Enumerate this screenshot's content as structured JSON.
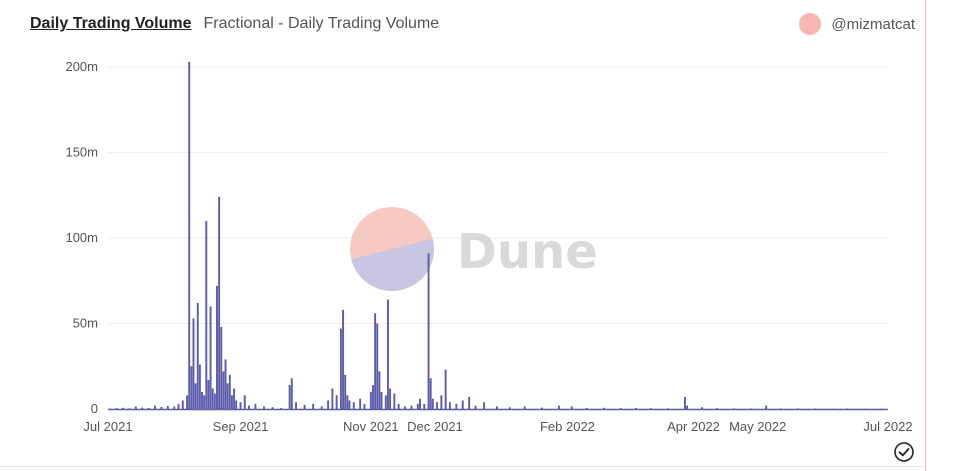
{
  "header": {
    "title": "Daily Trading Volume",
    "subtitle": "Fractional - Daily Trading Volume",
    "author": "@mizmatcat"
  },
  "colors": {
    "bar": "#5c5cab",
    "avatar": "#f7b7ae",
    "watermark_top": "#f6c9c2",
    "watermark_bottom": "#c9c6e3",
    "grid": "#eeeeee"
  },
  "watermark": {
    "text": "Dune"
  },
  "chart_data": {
    "type": "bar",
    "title": "Daily Trading Volume",
    "subtitle": "Fractional - Daily Trading Volume",
    "xlabel": "",
    "ylabel": "",
    "grid": true,
    "x_range": [
      "2021-07-01",
      "2022-07-01"
    ],
    "ylim": [
      0,
      200000000
    ],
    "y_ticks": [
      {
        "value": 0,
        "label": "0"
      },
      {
        "value": 50000000,
        "label": "50m"
      },
      {
        "value": 100000000,
        "label": "100m"
      },
      {
        "value": 150000000,
        "label": "150m"
      },
      {
        "value": 200000000,
        "label": "200m"
      }
    ],
    "x_ticks": [
      {
        "date": "2021-07-01",
        "label": "Jul 2021"
      },
      {
        "date": "2021-09-01",
        "label": "Sep 2021"
      },
      {
        "date": "2021-11-01",
        "label": "Nov 2021"
      },
      {
        "date": "2021-12-01",
        "label": "Dec 2021"
      },
      {
        "date": "2022-02-01",
        "label": "Feb 2022"
      },
      {
        "date": "2022-04-01",
        "label": "Apr 2022"
      },
      {
        "date": "2022-05-01",
        "label": "May 2022"
      },
      {
        "date": "2022-07-01",
        "label": "Jul 2022"
      }
    ],
    "series": [
      {
        "points": [
          [
            "2021-07-02",
            300000
          ],
          [
            "2021-07-05",
            500000
          ],
          [
            "2021-07-08",
            700000
          ],
          [
            "2021-07-11",
            400000
          ],
          [
            "2021-07-14",
            1500000
          ],
          [
            "2021-07-17",
            800000
          ],
          [
            "2021-07-20",
            600000
          ],
          [
            "2021-07-23",
            2000000
          ],
          [
            "2021-07-26",
            1200000
          ],
          [
            "2021-07-29",
            1800000
          ],
          [
            "2021-08-01",
            1500000
          ],
          [
            "2021-08-03",
            3000000
          ],
          [
            "2021-08-05",
            5000000
          ],
          [
            "2021-08-07",
            8000000
          ],
          [
            "2021-08-08",
            203000000
          ],
          [
            "2021-08-09",
            25000000
          ],
          [
            "2021-08-10",
            53000000
          ],
          [
            "2021-08-11",
            15000000
          ],
          [
            "2021-08-12",
            62000000
          ],
          [
            "2021-08-13",
            26000000
          ],
          [
            "2021-08-14",
            10000000
          ],
          [
            "2021-08-15",
            8000000
          ],
          [
            "2021-08-16",
            110000000
          ],
          [
            "2021-08-17",
            17000000
          ],
          [
            "2021-08-18",
            60000000
          ],
          [
            "2021-08-19",
            12000000
          ],
          [
            "2021-08-20",
            9000000
          ],
          [
            "2021-08-21",
            72000000
          ],
          [
            "2021-08-22",
            124000000
          ],
          [
            "2021-08-23",
            48000000
          ],
          [
            "2021-08-24",
            22000000
          ],
          [
            "2021-08-25",
            29000000
          ],
          [
            "2021-08-26",
            15000000
          ],
          [
            "2021-08-27",
            20000000
          ],
          [
            "2021-08-28",
            8000000
          ],
          [
            "2021-08-29",
            12000000
          ],
          [
            "2021-08-30",
            5000000
          ],
          [
            "2021-09-01",
            4000000
          ],
          [
            "2021-09-03",
            8000000
          ],
          [
            "2021-09-05",
            2000000
          ],
          [
            "2021-09-08",
            3000000
          ],
          [
            "2021-09-12",
            1500000
          ],
          [
            "2021-09-16",
            1000000
          ],
          [
            "2021-09-20",
            500000
          ],
          [
            "2021-09-24",
            14000000
          ],
          [
            "2021-09-25",
            18000000
          ],
          [
            "2021-09-27",
            4000000
          ],
          [
            "2021-10-01",
            2500000
          ],
          [
            "2021-10-05",
            3000000
          ],
          [
            "2021-10-09",
            1500000
          ],
          [
            "2021-10-12",
            5000000
          ],
          [
            "2021-10-14",
            12000000
          ],
          [
            "2021-10-16",
            8000000
          ],
          [
            "2021-10-18",
            47000000
          ],
          [
            "2021-10-19",
            58000000
          ],
          [
            "2021-10-20",
            20000000
          ],
          [
            "2021-10-21",
            8000000
          ],
          [
            "2021-10-22",
            5000000
          ],
          [
            "2021-10-24",
            4000000
          ],
          [
            "2021-10-27",
            6000000
          ],
          [
            "2021-10-29",
            3000000
          ],
          [
            "2021-11-01",
            10000000
          ],
          [
            "2021-11-02",
            14000000
          ],
          [
            "2021-11-03",
            56000000
          ],
          [
            "2021-11-04",
            50000000
          ],
          [
            "2021-11-05",
            22000000
          ],
          [
            "2021-11-06",
            10000000
          ],
          [
            "2021-11-08",
            8000000
          ],
          [
            "2021-11-09",
            64000000
          ],
          [
            "2021-11-10",
            12000000
          ],
          [
            "2021-11-12",
            9000000
          ],
          [
            "2021-11-14",
            3000000
          ],
          [
            "2021-11-17",
            1500000
          ],
          [
            "2021-11-20",
            2000000
          ],
          [
            "2021-11-23",
            3000000
          ],
          [
            "2021-11-24",
            6000000
          ],
          [
            "2021-11-26",
            3000000
          ],
          [
            "2021-11-28",
            91000000
          ],
          [
            "2021-11-29",
            18000000
          ],
          [
            "2021-11-30",
            6000000
          ],
          [
            "2021-12-02",
            4000000
          ],
          [
            "2021-12-04",
            8000000
          ],
          [
            "2021-12-06",
            23000000
          ],
          [
            "2021-12-08",
            4000000
          ],
          [
            "2021-12-11",
            3000000
          ],
          [
            "2021-12-14",
            5000000
          ],
          [
            "2021-12-17",
            7000000
          ],
          [
            "2021-12-20",
            2000000
          ],
          [
            "2021-12-24",
            4000000
          ],
          [
            "2021-12-30",
            1500000
          ],
          [
            "2022-01-05",
            1000000
          ],
          [
            "2022-01-12",
            1500000
          ],
          [
            "2022-01-20",
            800000
          ],
          [
            "2022-01-28",
            2000000
          ],
          [
            "2022-02-03",
            1500000
          ],
          [
            "2022-02-10",
            600000
          ],
          [
            "2022-02-18",
            700000
          ],
          [
            "2022-02-26",
            500000
          ],
          [
            "2022-03-05",
            600000
          ],
          [
            "2022-03-12",
            500000
          ],
          [
            "2022-03-20",
            400000
          ],
          [
            "2022-03-28",
            7000000
          ],
          [
            "2022-03-29",
            2000000
          ],
          [
            "2022-04-05",
            1000000
          ],
          [
            "2022-04-12",
            500000
          ],
          [
            "2022-04-20",
            400000
          ],
          [
            "2022-04-28",
            300000
          ],
          [
            "2022-05-05",
            2000000
          ],
          [
            "2022-05-12",
            300000
          ],
          [
            "2022-05-20",
            400000
          ],
          [
            "2022-05-28",
            300000
          ],
          [
            "2022-06-05",
            200000
          ],
          [
            "2022-06-12",
            300000
          ],
          [
            "2022-06-20",
            200000
          ],
          [
            "2022-06-28",
            200000
          ]
        ]
      }
    ]
  }
}
